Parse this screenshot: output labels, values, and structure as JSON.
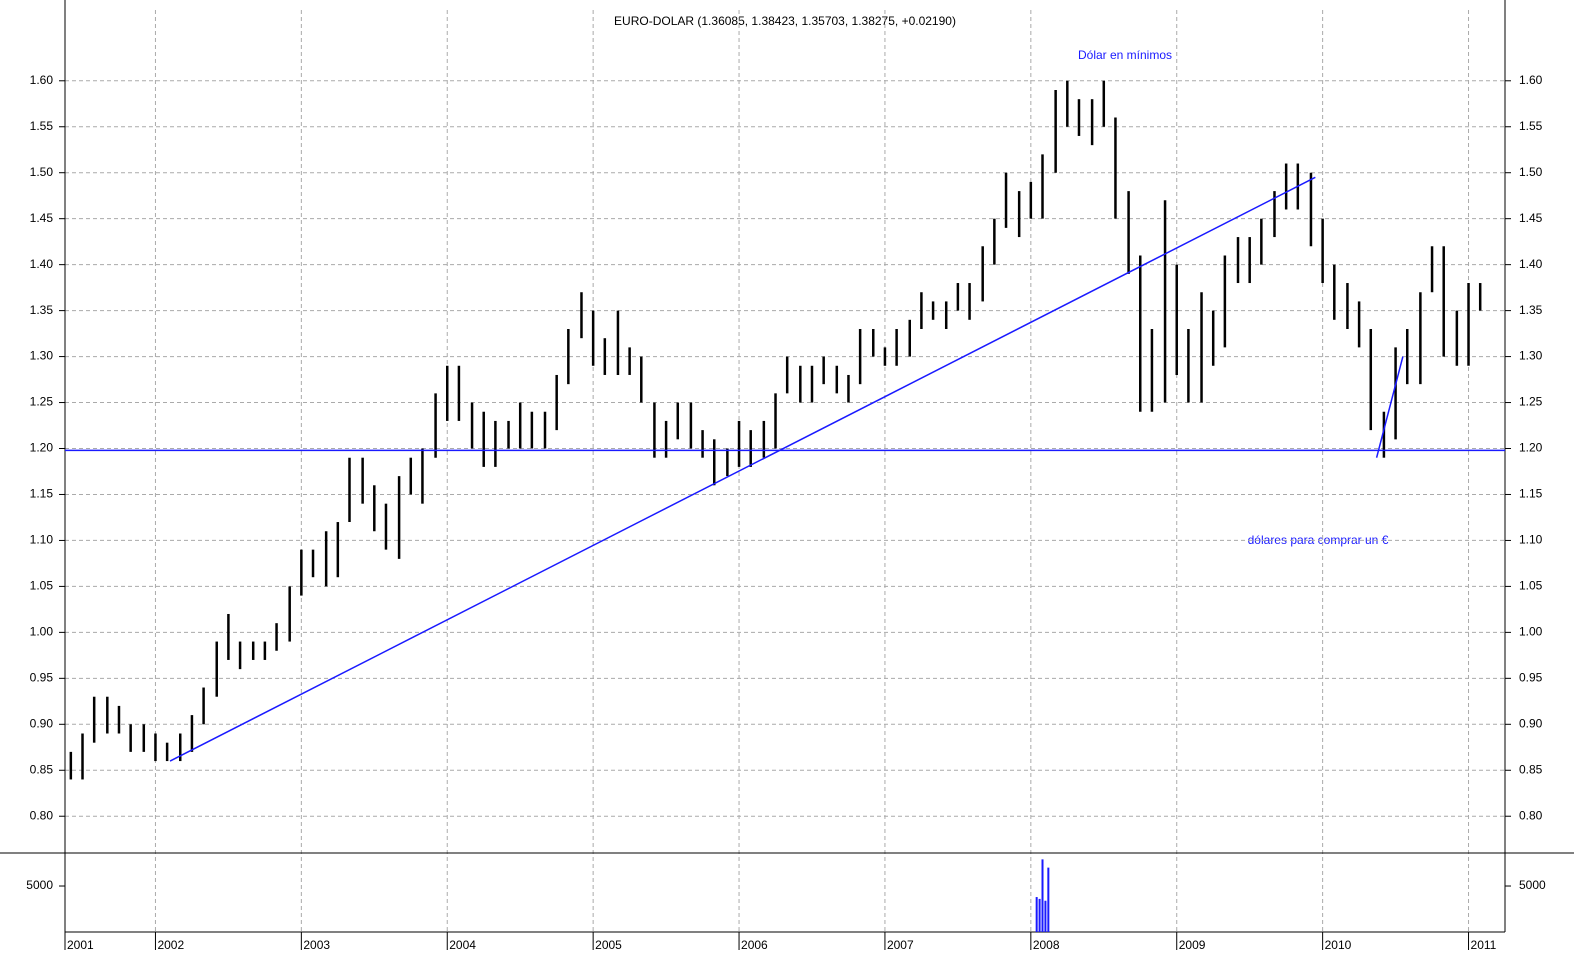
{
  "chart_data": {
    "type": "ohlc",
    "title": "EURO-DOLAR (1.36085, 1.38423, 1.35703, 1.38275, +0.02190)",
    "annotations": [
      "Dólar en mínimos",
      "dólares para comprar un €"
    ],
    "color": "#000000",
    "line_color": "#1a1aff",
    "grid": true,
    "x": [
      2001.42,
      2001.5,
      2001.58,
      2001.67,
      2001.75,
      2001.83,
      2001.92,
      2002.0,
      2002.08,
      2002.17,
      2002.25,
      2002.33,
      2002.42,
      2002.5,
      2002.58,
      2002.67,
      2002.75,
      2002.83,
      2002.92,
      2003.0,
      2003.08,
      2003.17,
      2003.25,
      2003.33,
      2003.42,
      2003.5,
      2003.58,
      2003.67,
      2003.75,
      2003.83,
      2003.92,
      2004.0,
      2004.08,
      2004.17,
      2004.25,
      2004.33,
      2004.42,
      2004.5,
      2004.58,
      2004.67,
      2004.75,
      2004.83,
      2004.92,
      2005.0,
      2005.08,
      2005.17,
      2005.25,
      2005.33,
      2005.42,
      2005.5,
      2005.58,
      2005.67,
      2005.75,
      2005.83,
      2005.92,
      2006.0,
      2006.08,
      2006.17,
      2006.25,
      2006.33,
      2006.42,
      2006.5,
      2006.58,
      2006.67,
      2006.75,
      2006.83,
      2006.92,
      2007.0,
      2007.08,
      2007.17,
      2007.25,
      2007.33,
      2007.42,
      2007.5,
      2007.58,
      2007.67,
      2007.75,
      2007.83,
      2007.92,
      2008.0,
      2008.08,
      2008.17,
      2008.25,
      2008.33,
      2008.42,
      2008.5,
      2008.58,
      2008.67,
      2008.75,
      2008.83,
      2008.92,
      2009.0,
      2009.08,
      2009.17,
      2009.25,
      2009.33,
      2009.42,
      2009.5,
      2009.58,
      2009.67,
      2009.75,
      2009.83,
      2009.92,
      2010.0,
      2010.08,
      2010.17,
      2010.25,
      2010.33,
      2010.42,
      2010.5,
      2010.58,
      2010.67,
      2010.75,
      2010.83,
      2010.92,
      2011.0,
      2011.08
    ],
    "high": [
      0.87,
      0.89,
      0.93,
      0.93,
      0.92,
      0.9,
      0.9,
      0.89,
      0.88,
      0.89,
      0.91,
      0.94,
      0.99,
      1.02,
      0.99,
      0.99,
      0.99,
      1.01,
      1.05,
      1.09,
      1.09,
      1.11,
      1.12,
      1.19,
      1.19,
      1.16,
      1.14,
      1.17,
      1.19,
      1.2,
      1.26,
      1.29,
      1.29,
      1.25,
      1.24,
      1.23,
      1.23,
      1.25,
      1.24,
      1.24,
      1.28,
      1.33,
      1.37,
      1.35,
      1.32,
      1.35,
      1.31,
      1.3,
      1.25,
      1.23,
      1.25,
      1.25,
      1.22,
      1.21,
      1.2,
      1.23,
      1.22,
      1.23,
      1.26,
      1.3,
      1.29,
      1.29,
      1.3,
      1.29,
      1.28,
      1.33,
      1.33,
      1.31,
      1.33,
      1.34,
      1.37,
      1.36,
      1.36,
      1.38,
      1.38,
      1.42,
      1.45,
      1.5,
      1.48,
      1.49,
      1.52,
      1.59,
      1.6,
      1.58,
      1.58,
      1.6,
      1.56,
      1.48,
      1.41,
      1.33,
      1.47,
      1.4,
      1.33,
      1.37,
      1.35,
      1.41,
      1.43,
      1.43,
      1.45,
      1.48,
      1.51,
      1.51,
      1.5,
      1.45,
      1.4,
      1.38,
      1.36,
      1.33,
      1.24,
      1.31,
      1.33,
      1.37,
      1.42,
      1.42,
      1.35,
      1.38,
      1.38
    ],
    "low": [
      0.84,
      0.84,
      0.88,
      0.89,
      0.89,
      0.87,
      0.87,
      0.86,
      0.86,
      0.86,
      0.87,
      0.9,
      0.93,
      0.97,
      0.96,
      0.97,
      0.97,
      0.98,
      0.99,
      1.04,
      1.06,
      1.05,
      1.06,
      1.12,
      1.14,
      1.11,
      1.09,
      1.08,
      1.15,
      1.14,
      1.19,
      1.23,
      1.23,
      1.2,
      1.18,
      1.18,
      1.2,
      1.2,
      1.2,
      1.2,
      1.22,
      1.27,
      1.32,
      1.29,
      1.28,
      1.28,
      1.28,
      1.25,
      1.19,
      1.19,
      1.21,
      1.2,
      1.19,
      1.16,
      1.17,
      1.18,
      1.18,
      1.19,
      1.2,
      1.26,
      1.25,
      1.25,
      1.27,
      1.26,
      1.25,
      1.27,
      1.3,
      1.29,
      1.29,
      1.3,
      1.33,
      1.34,
      1.33,
      1.35,
      1.34,
      1.36,
      1.4,
      1.44,
      1.43,
      1.45,
      1.45,
      1.5,
      1.55,
      1.54,
      1.53,
      1.55,
      1.45,
      1.39,
      1.24,
      1.24,
      1.25,
      1.28,
      1.25,
      1.25,
      1.29,
      1.31,
      1.38,
      1.38,
      1.4,
      1.43,
      1.46,
      1.46,
      1.42,
      1.38,
      1.34,
      1.33,
      1.31,
      1.22,
      1.19,
      1.21,
      1.27,
      1.27,
      1.37,
      1.3,
      1.29,
      1.29,
      1.35
    ],
    "xlim": [
      2001.38,
      2011.25
    ],
    "xticks": [
      {
        "value": 2001.38,
        "label": "2001"
      },
      2002,
      2003,
      2004,
      2005,
      2006,
      2007,
      2008,
      2009,
      2010,
      2011
    ],
    "ylim": [
      0.76,
      1.677
    ],
    "yticks": [
      {
        "value": 0.8,
        "label": "0.80"
      },
      {
        "value": 0.85,
        "label": "0.85"
      },
      {
        "value": 0.9,
        "label": "0.90"
      },
      {
        "value": 0.95,
        "label": "0.95"
      },
      {
        "value": 1.0,
        "label": "1.00"
      },
      {
        "value": 1.05,
        "label": "1.05"
      },
      {
        "value": 1.1,
        "label": "1.10"
      },
      {
        "value": 1.15,
        "label": "1.15"
      },
      {
        "value": 1.2,
        "label": "1.20"
      },
      {
        "value": 1.25,
        "label": "1.25"
      },
      {
        "value": 1.3,
        "label": "1.30"
      },
      {
        "value": 1.35,
        "label": "1.35"
      },
      {
        "value": 1.4,
        "label": "1.40"
      },
      {
        "value": 1.45,
        "label": "1.45"
      },
      {
        "value": 1.5,
        "label": "1.50"
      },
      {
        "value": 1.55,
        "label": "1.55"
      },
      {
        "value": 1.6,
        "label": "1.60"
      }
    ],
    "lines": [
      {
        "x1": 2001.38,
        "y1": 1.198,
        "x2": 2011.25,
        "y2": 1.198
      },
      {
        "x1": 2002.1,
        "y1": 0.86,
        "x2": 2009.95,
        "y2": 1.495
      },
      {
        "x1": 2010.37,
        "y1": 1.19,
        "x2": 2010.55,
        "y2": 1.3
      }
    ],
    "volume": {
      "x": [
        2008.04,
        2008.06,
        2008.08,
        2008.1,
        2008.12
      ],
      "values": [
        3800,
        3600,
        7900,
        3400,
        7000
      ],
      "color": "#1a1aff",
      "ylim": [
        0,
        8590
      ],
      "yticks": [
        5000
      ]
    }
  }
}
